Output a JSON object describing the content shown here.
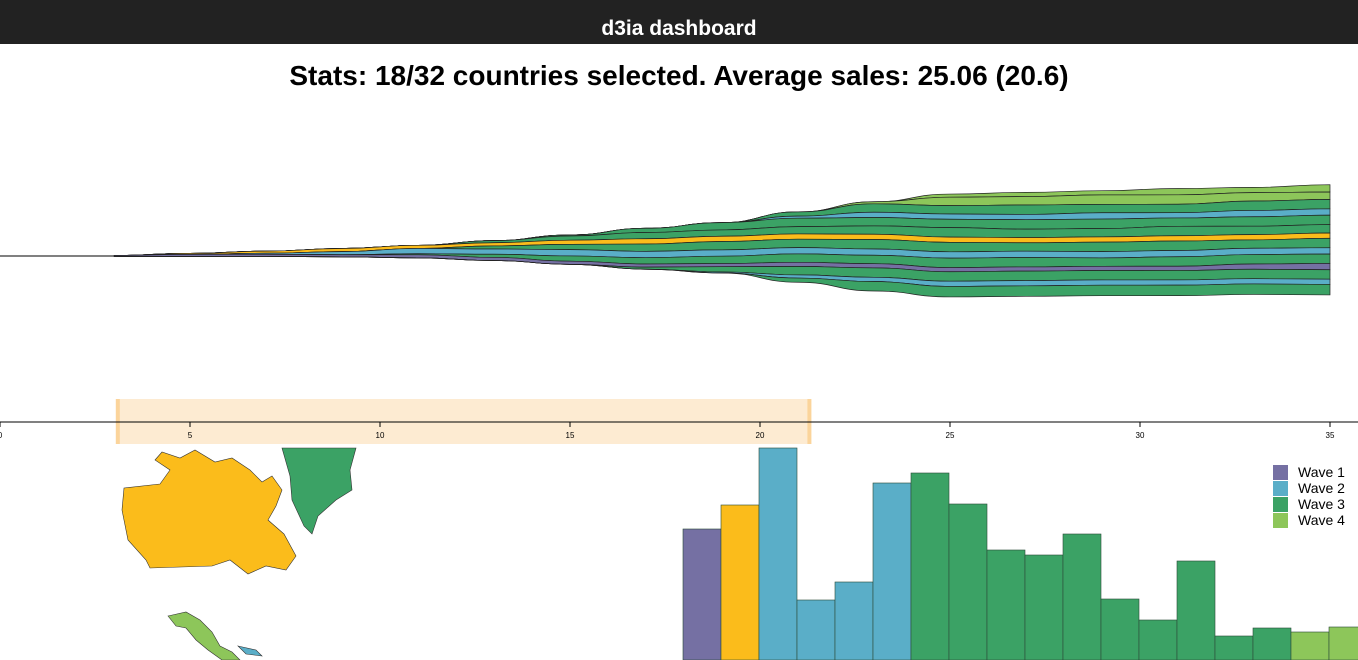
{
  "header": {
    "title": "d3ia dashboard"
  },
  "stats": {
    "text": "Stats: 18/32 countries selected. Average sales: 25.06 (20.6)"
  },
  "colors": {
    "wave1": "#7570a3",
    "wave2": "#5aaec8",
    "wave3": "#3ba265",
    "wave4": "#8dc65a",
    "selected": "#fbbc1b",
    "brush": "#fdebd2",
    "brush_edge": "#fbd49b"
  },
  "legend": [
    {
      "label": "Wave 1",
      "color": "#7570a3"
    },
    {
      "label": "Wave 2",
      "color": "#5aaec8"
    },
    {
      "label": "Wave 3",
      "color": "#3ba265"
    },
    {
      "label": "Wave 4",
      "color": "#8dc65a"
    }
  ],
  "timeline": {
    "ticks": [
      "0",
      "5",
      "10",
      "15",
      "20",
      "25",
      "30",
      "35"
    ],
    "domain": [
      0,
      35
    ],
    "brush_range": [
      3.1,
      21.3
    ]
  },
  "chart_data": [
    {
      "type": "area",
      "subtype": "streamgraph",
      "x": [
        3,
        5,
        7,
        9,
        11,
        13,
        15,
        17,
        19,
        21,
        23,
        25,
        27,
        29,
        31,
        33,
        35
      ],
      "series": [
        {
          "color": "#8dc65a",
          "values": [
            0,
            0,
            0,
            0,
            0,
            0,
            0,
            0,
            0,
            0,
            0,
            3,
            4,
            4,
            6,
            5,
            7
          ]
        },
        {
          "color": "#8dc65a",
          "values": [
            0,
            0,
            0,
            0,
            0,
            0,
            0,
            0,
            0,
            0,
            2,
            8,
            8,
            9,
            9,
            8,
            7
          ]
        },
        {
          "color": "#3ba265",
          "values": [
            0,
            0,
            0,
            0,
            0,
            0,
            0,
            0,
            0,
            4,
            8,
            8,
            9,
            8,
            8,
            9,
            9
          ]
        },
        {
          "color": "#5aaec8",
          "values": [
            0,
            0,
            0,
            0,
            0,
            0,
            0,
            0,
            0,
            2,
            5,
            5,
            5,
            6,
            5,
            6,
            6
          ]
        },
        {
          "color": "#3ba265",
          "values": [
            0,
            0,
            0,
            0,
            0,
            0,
            1,
            4,
            7,
            8,
            8,
            8,
            9,
            9,
            8,
            9,
            9
          ]
        },
        {
          "color": "#3ba265",
          "values": [
            0,
            0,
            0,
            0,
            0,
            2,
            4,
            6,
            6,
            7,
            8,
            9,
            8,
            8,
            9,
            8,
            8
          ]
        },
        {
          "color": "#fbbc1b",
          "values": [
            0,
            1,
            2,
            3,
            3,
            3,
            4,
            5,
            5,
            5,
            5,
            5,
            5,
            5,
            5,
            5,
            5
          ]
        },
        {
          "color": "#3ba265",
          "values": [
            0,
            0,
            0,
            0,
            0,
            3,
            5,
            7,
            8,
            8,
            9,
            9,
            8,
            9,
            9,
            8,
            9
          ]
        },
        {
          "color": "#5aaec8",
          "values": [
            0,
            0,
            1,
            3,
            5,
            5,
            6,
            6,
            6,
            6,
            6,
            6,
            6,
            6,
            6,
            6,
            6
          ]
        },
        {
          "color": "#3ba265",
          "values": [
            0,
            0,
            0,
            0,
            1,
            3,
            5,
            6,
            7,
            8,
            8,
            9,
            9,
            8,
            9,
            9,
            9
          ]
        },
        {
          "color": "#7570a3",
          "values": [
            1,
            2,
            2,
            2,
            3,
            3,
            3,
            3,
            3,
            4,
            4,
            4,
            4,
            4,
            4,
            5,
            6
          ]
        },
        {
          "color": "#3ba265",
          "values": [
            0,
            0,
            0,
            0,
            0,
            0,
            0,
            2,
            5,
            8,
            9,
            9,
            9,
            9,
            9,
            9,
            9
          ]
        },
        {
          "color": "#5aaec8",
          "values": [
            0,
            0,
            0,
            0,
            0,
            0,
            0,
            0,
            1,
            3,
            4,
            5,
            5,
            5,
            5,
            5,
            5
          ]
        },
        {
          "color": "#3ba265",
          "values": [
            0,
            0,
            0,
            0,
            0,
            0,
            0,
            0,
            0,
            4,
            9,
            10,
            10,
            10,
            10,
            10,
            10
          ]
        }
      ]
    },
    {
      "type": "bar",
      "values": [
        131,
        155,
        212,
        60,
        78,
        177,
        187,
        156,
        110,
        105,
        126,
        61,
        40,
        99,
        24,
        32,
        28,
        33
      ],
      "colors": [
        "#7570a3",
        "#fbbc1b",
        "#5aaec8",
        "#5aaec8",
        "#5aaec8",
        "#5aaec8",
        "#3ba265",
        "#3ba265",
        "#3ba265",
        "#3ba265",
        "#3ba265",
        "#3ba265",
        "#3ba265",
        "#3ba265",
        "#3ba265",
        "#3ba265",
        "#8dc65a",
        "#8dc65a"
      ]
    }
  ],
  "map": {
    "countries": [
      {
        "name": "Canada",
        "color": "#fbbc1b"
      },
      {
        "name": "Greenland",
        "color": "#3ba265"
      },
      {
        "name": "Mexico",
        "color": "#8dc65a"
      }
    ]
  }
}
